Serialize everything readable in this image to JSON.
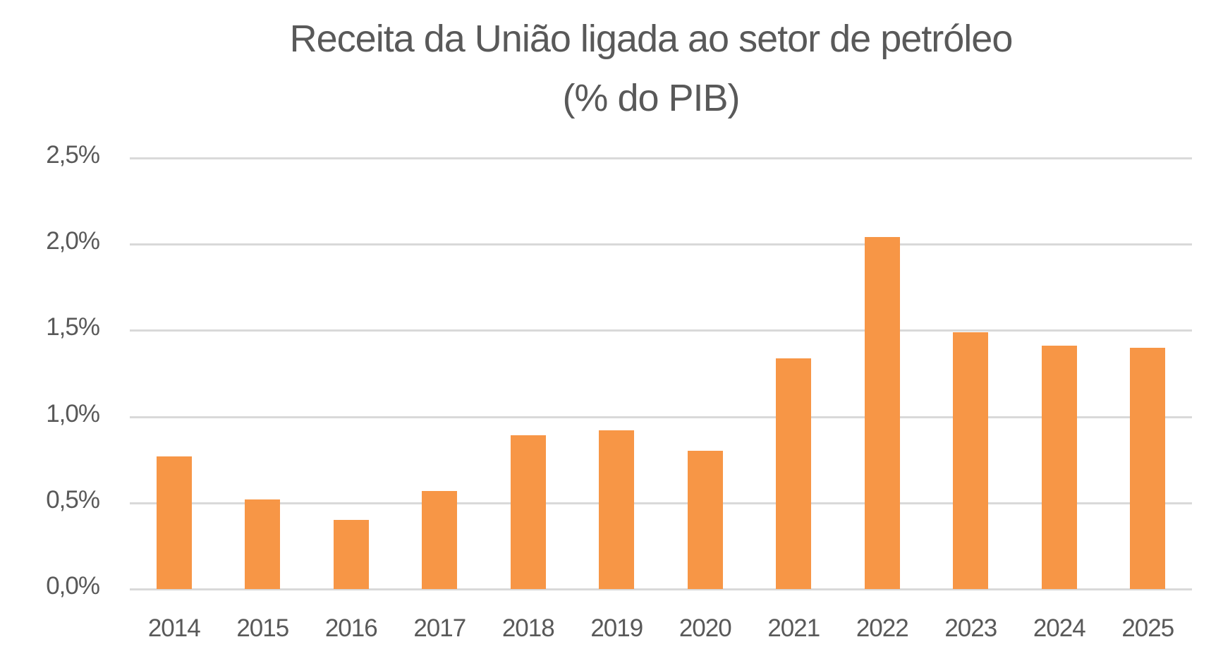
{
  "chart": {
    "title_line1": "Receita da União ligada ao setor de petróleo",
    "title_line2": "(% do PIB)",
    "bar_color": "#F79646",
    "grid_color": "#D9D9D9",
    "text_color": "#595959",
    "y_ticks": [
      "0,0%",
      "0,5%",
      "1,0%",
      "1,5%",
      "2,0%",
      "2,5%"
    ],
    "x_ticks": [
      "2014",
      "2015",
      "2016",
      "2017",
      "2018",
      "2019",
      "2020",
      "2021",
      "2022",
      "2023",
      "2024",
      "2025"
    ]
  },
  "chart_data": {
    "type": "bar",
    "title": "Receita da União ligada ao setor de petróleo (% do PIB)",
    "categories": [
      "2014",
      "2015",
      "2016",
      "2017",
      "2018",
      "2019",
      "2020",
      "2021",
      "2022",
      "2023",
      "2024",
      "2025"
    ],
    "values": [
      0.77,
      0.52,
      0.4,
      0.57,
      0.89,
      0.92,
      0.8,
      1.34,
      2.04,
      1.49,
      1.41,
      1.4
    ],
    "xlabel": "",
    "ylabel": "% do PIB",
    "ylim": [
      0,
      2.5
    ],
    "y_tick_step": 0.5,
    "grid": true,
    "legend": null
  }
}
